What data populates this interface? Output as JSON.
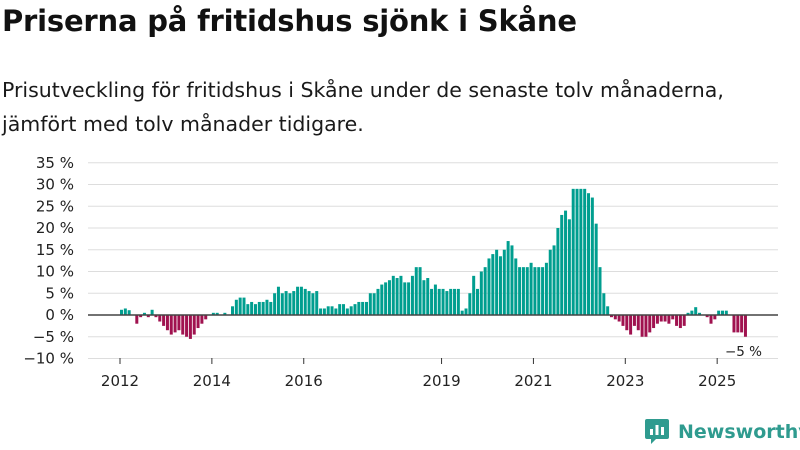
{
  "title": "Priserna på fritidshus sjönk i Skåne",
  "subtitle": "Prisutveckling för fritidshus i Skåne under de senaste tolv månaderna, jämfört med tolv månader tidigare.",
  "brand": "Newsworthy",
  "colors": {
    "positive": "#009e8f",
    "negative": "#a0124f",
    "grid": "#dddddd",
    "zero": "#444444"
  },
  "chart_data": {
    "type": "bar",
    "title": "Priserna på fritidshus sjönk i Skåne",
    "xlabel": "",
    "ylabel": "",
    "ylim": [
      -10,
      35
    ],
    "y_ticks": [
      {
        "value": -10,
        "label": "−10 %"
      },
      {
        "value": -5,
        "label": "−5 %"
      },
      {
        "value": 0,
        "label": "0 %"
      },
      {
        "value": 5,
        "label": "5 %"
      },
      {
        "value": 10,
        "label": "10 %"
      },
      {
        "value": 15,
        "label": "15 %"
      },
      {
        "value": 20,
        "label": "20 %"
      },
      {
        "value": 25,
        "label": "25 %"
      },
      {
        "value": 30,
        "label": "30 %"
      },
      {
        "value": 35,
        "label": "35 %"
      }
    ],
    "x_ticks": [
      {
        "year": 2012,
        "label": "2012"
      },
      {
        "year": 2014,
        "label": "2014"
      },
      {
        "year": 2016,
        "label": "2016"
      },
      {
        "year": 2019,
        "label": "2019"
      },
      {
        "year": 2021,
        "label": "2021"
      },
      {
        "year": 2023,
        "label": "2023"
      },
      {
        "year": 2025,
        "label": "2025"
      }
    ],
    "start": "2012-01",
    "frequency": "monthly",
    "unit": "%",
    "values": [
      1.2,
      1.5,
      1.1,
      0,
      -2,
      -0.5,
      0.5,
      -0.5,
      1.2,
      -0.5,
      -1.5,
      -2.5,
      -3.5,
      -4.5,
      -4,
      -3.5,
      -4.5,
      -5,
      -5.5,
      -4.5,
      -3,
      -2,
      -1,
      0,
      0.5,
      0.5,
      0,
      0.5,
      0,
      2,
      3.5,
      4,
      4,
      2.5,
      3,
      2.5,
      3,
      3,
      3.5,
      3,
      5,
      6.5,
      5,
      5.5,
      5,
      5.5,
      6.5,
      6.5,
      6,
      5.5,
      5,
      5.5,
      1.5,
      1.5,
      2,
      2,
      1.5,
      2.5,
      2.5,
      1.5,
      2,
      2.5,
      3,
      3,
      3,
      5,
      5,
      6,
      7,
      7.5,
      8,
      9,
      8.5,
      9,
      7.5,
      7.5,
      9,
      11,
      11,
      8,
      8.5,
      6,
      7,
      6,
      6,
      5.5,
      6,
      6,
      6,
      1,
      1.5,
      5,
      9,
      6,
      10,
      11,
      13,
      14,
      15,
      13.5,
      15,
      17,
      16,
      13,
      11,
      11,
      11,
      12,
      11,
      11,
      11,
      12,
      15,
      16,
      20,
      23,
      24,
      22,
      29,
      29,
      29,
      29,
      28,
      27,
      21,
      11,
      5,
      2,
      -0.5,
      -1,
      -1.5,
      -2.5,
      -3.5,
      -4.5,
      -2.5,
      -3.5,
      -5,
      -5,
      -4,
      -3,
      -2,
      -1.5,
      -1.5,
      -2,
      -1,
      -2.5,
      -3,
      -2.5,
      0.5,
      1,
      1.8,
      0.5,
      0,
      -0.5,
      -2,
      -1,
      1,
      1,
      1,
      0,
      -4,
      -4,
      -4,
      -5
    ],
    "annotations": [
      {
        "label": "−5 %",
        "target": "last"
      }
    ]
  }
}
